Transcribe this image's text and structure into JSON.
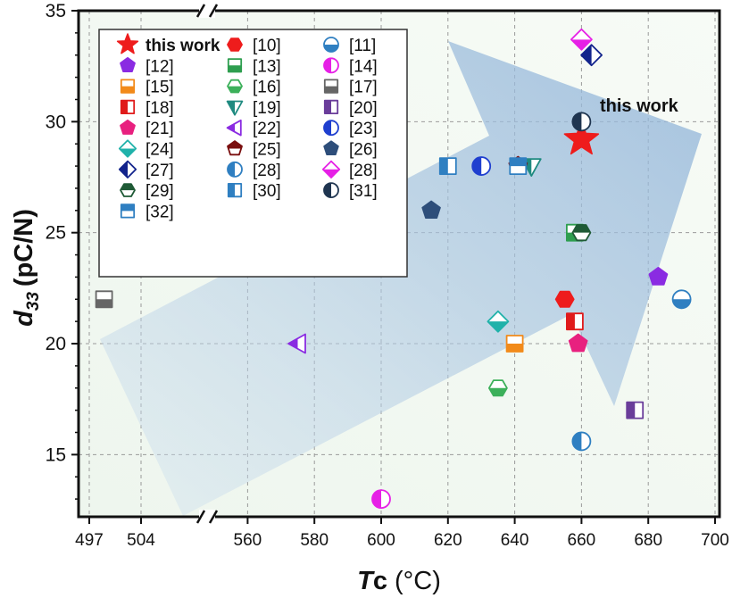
{
  "chart_data": {
    "type": "scatter",
    "title": "",
    "xlabel_main": "T",
    "xlabel_sub": "c",
    "xlabel_unit": "(°C)",
    "ylabel_main": "d",
    "ylabel_sub": "33",
    "ylabel_unit": "(pC/N)",
    "annotation": "this work",
    "xlim_left": [
      496,
      510
    ],
    "xlim_right": [
      549,
      700
    ],
    "x_break": true,
    "ylim": [
      12.2,
      35
    ],
    "x_ticks_left": [
      497,
      504
    ],
    "x_ticks_right": [
      560,
      580,
      600,
      620,
      640,
      660,
      680,
      700
    ],
    "y_ticks": [
      15,
      20,
      25,
      30,
      35
    ],
    "grid": true,
    "legend_position": "top-left",
    "series": [
      {
        "name": "this work",
        "x": 660,
        "y": 29.2,
        "marker": "star",
        "color": "#ee1c1c"
      },
      {
        "name": "[10]",
        "x": 655,
        "y": 22,
        "marker": "hexagon-half",
        "color": "#ee1c1c"
      },
      {
        "name": "[11]",
        "x": 690,
        "y": 22,
        "marker": "circle-bottom",
        "color": "#2f7fc1"
      },
      {
        "name": "[12]",
        "x": 683,
        "y": 23,
        "marker": "pentagon-half",
        "color": "#8a2be2"
      },
      {
        "name": "[13]",
        "x": 658,
        "y": 25,
        "marker": "square-bottom",
        "color": "#2e9e4f"
      },
      {
        "name": "[14]",
        "x": 600,
        "y": 13,
        "marker": "circle-left",
        "color": "#e620e6"
      },
      {
        "name": "[15]",
        "x": 640,
        "y": 20,
        "marker": "square-bottom",
        "color": "#f28a1a"
      },
      {
        "name": "[16]",
        "x": 635,
        "y": 18,
        "marker": "hexagon-bottom",
        "color": "#3cb05a"
      },
      {
        "name": "[17]",
        "x": 499,
        "y": 22,
        "marker": "square-bottom",
        "color": "#666666"
      },
      {
        "name": "[18]",
        "x": 658,
        "y": 21,
        "marker": "square-left",
        "color": "#e01b1b"
      },
      {
        "name": "[19]",
        "x": 645,
        "y": 28,
        "marker": "triangle-down-half",
        "color": "#1f8a80"
      },
      {
        "name": "[20]",
        "x": 676,
        "y": 17,
        "marker": "square-left",
        "color": "#6a3d9a"
      },
      {
        "name": "[21]",
        "x": 659,
        "y": 20,
        "marker": "pentagon-half",
        "color": "#e8207f"
      },
      {
        "name": "[22]",
        "x": 575,
        "y": 20,
        "marker": "triangle-left-half",
        "color": "#8a2be2"
      },
      {
        "name": "[23]",
        "x": 630,
        "y": 28,
        "marker": "circle-left",
        "color": "#1f3fcf"
      },
      {
        "name": "[24]",
        "x": 635,
        "y": 21,
        "marker": "diamond-bottom",
        "color": "#20b2aa"
      },
      {
        "name": "[25]",
        "x": 641,
        "y": 28,
        "marker": "pentagon-top",
        "color": "#7a0f0f"
      },
      {
        "name": "[26]",
        "x": 615,
        "y": 26,
        "marker": "pentagon-full",
        "color": "#2e4e7a"
      },
      {
        "name": "[27]",
        "x": 663,
        "y": 33,
        "marker": "diamond-left",
        "color": "#12238c"
      },
      {
        "name": "[28]",
        "x": 660,
        "y": 15.6,
        "marker": "circle-left",
        "color": "#2f7fc1"
      },
      {
        "name": "[28]",
        "x": 660,
        "y": 33.7,
        "marker": "diamond-bottom",
        "color": "#e620e6"
      },
      {
        "name": "[29]",
        "x": 660,
        "y": 25,
        "marker": "hexagon-top",
        "color": "#1f5a36"
      },
      {
        "name": "[30]",
        "x": 620,
        "y": 28,
        "marker": "square-left",
        "color": "#2f7fc1"
      },
      {
        "name": "[31]",
        "x": 660,
        "y": 30,
        "marker": "circle-left",
        "color": "#1f3550"
      },
      {
        "name": "[32]",
        "x": 641,
        "y": 28,
        "marker": "square-top",
        "color": "#2f7fc1"
      }
    ]
  }
}
